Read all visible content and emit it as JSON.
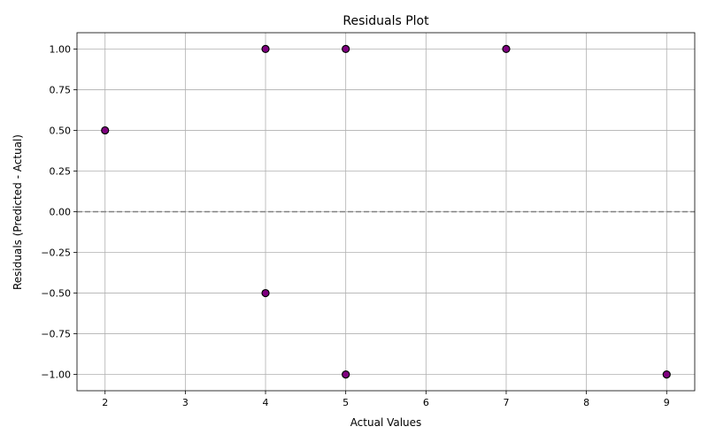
{
  "chart_data": {
    "type": "scatter",
    "title": "Residuals Plot",
    "xlabel": "Actual Values",
    "ylabel": "Residuals (Predicted - Actual)",
    "xlim": [
      1.65,
      9.35
    ],
    "ylim": [
      -1.1,
      1.1
    ],
    "xticks": [
      2,
      3,
      4,
      5,
      6,
      7,
      8,
      9
    ],
    "xtick_labels": [
      "2",
      "3",
      "4",
      "5",
      "6",
      "7",
      "8",
      "9"
    ],
    "yticks": [
      -1.0,
      -0.75,
      -0.5,
      -0.25,
      0.0,
      0.25,
      0.5,
      0.75,
      1.0
    ],
    "ytick_labels": [
      "−1.00",
      "−0.75",
      "−0.50",
      "−0.25",
      "0.00",
      "0.25",
      "0.50",
      "0.75",
      "1.00"
    ],
    "grid": true,
    "reference_line": {
      "y": 0,
      "style": "dashed",
      "color": "#808080"
    },
    "marker_fill": "#800080",
    "marker_edge": "#000000",
    "points": [
      {
        "x": 2,
        "y": 0.5
      },
      {
        "x": 4,
        "y": 1.0
      },
      {
        "x": 4,
        "y": -0.5
      },
      {
        "x": 5,
        "y": 1.0
      },
      {
        "x": 5,
        "y": -1.0
      },
      {
        "x": 7,
        "y": 1.0
      },
      {
        "x": 9,
        "y": -1.0
      }
    ]
  }
}
